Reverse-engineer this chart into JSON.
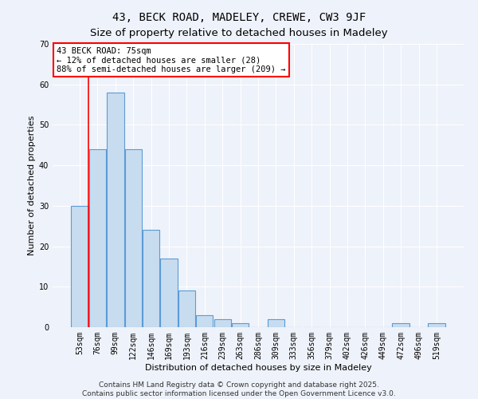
{
  "title_line1": "43, BECK ROAD, MADELEY, CREWE, CW3 9JF",
  "title_line2": "Size of property relative to detached houses in Madeley",
  "xlabel": "Distribution of detached houses by size in Madeley",
  "ylabel": "Number of detached properties",
  "categories": [
    "53sqm",
    "76sqm",
    "99sqm",
    "122sqm",
    "146sqm",
    "169sqm",
    "193sqm",
    "216sqm",
    "239sqm",
    "263sqm",
    "286sqm",
    "309sqm",
    "333sqm",
    "356sqm",
    "379sqm",
    "402sqm",
    "426sqm",
    "449sqm",
    "472sqm",
    "496sqm",
    "519sqm"
  ],
  "values": [
    30,
    44,
    58,
    44,
    24,
    17,
    9,
    3,
    2,
    1,
    0,
    2,
    0,
    0,
    0,
    0,
    0,
    0,
    1,
    0,
    1
  ],
  "bar_color": "#c8dcf0",
  "bar_edge_color": "#5b9bd5",
  "red_line_x": 0.5,
  "annotation_text": "43 BECK ROAD: 75sqm\n← 12% of detached houses are smaller (28)\n88% of semi-detached houses are larger (209) →",
  "ylim": [
    0,
    70
  ],
  "yticks": [
    0,
    10,
    20,
    30,
    40,
    50,
    60,
    70
  ],
  "background_color": "#eef2fa",
  "footer_line1": "Contains HM Land Registry data © Crown copyright and database right 2025.",
  "footer_line2": "Contains public sector information licensed under the Open Government Licence v3.0.",
  "title_fontsize": 10,
  "subtitle_fontsize": 9.5,
  "axis_label_fontsize": 8,
  "tick_fontsize": 7,
  "footer_fontsize": 6.5,
  "annotation_fontsize": 7.5
}
